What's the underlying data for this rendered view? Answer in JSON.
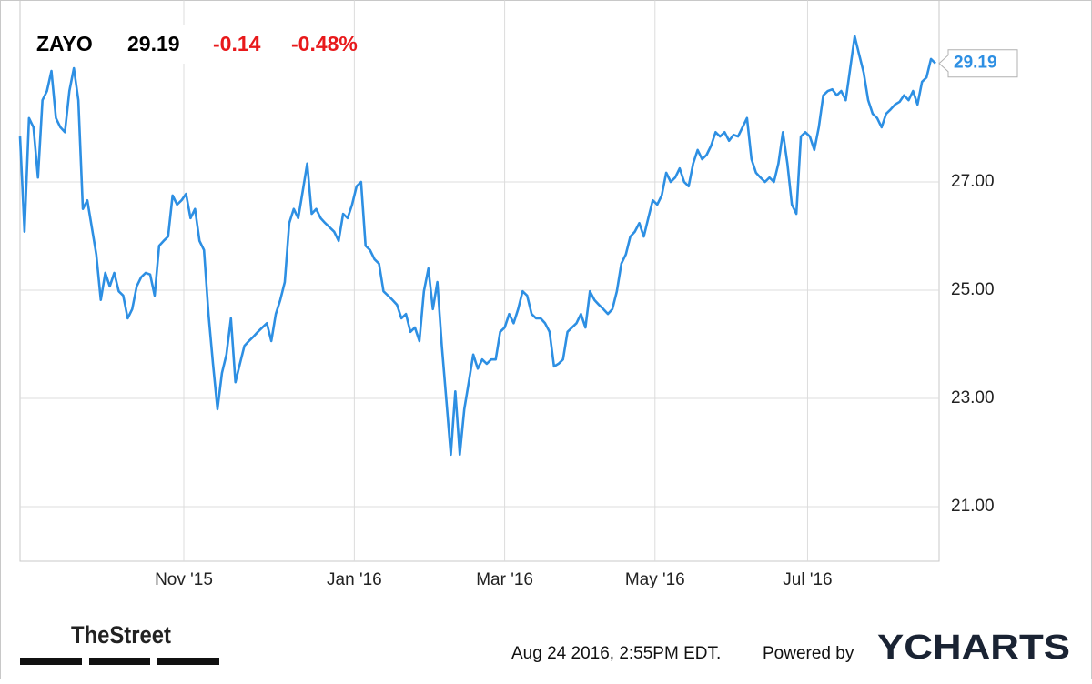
{
  "chart_data": {
    "type": "line",
    "price": 29.19,
    "change": -0.14,
    "change_pct": "-0.48%",
    "series": [
      {
        "name": "ZAYO",
        "color": "#2d8fe3",
        "values": [
          27.84,
          26.08,
          28.18,
          28.01,
          27.08,
          28.51,
          28.68,
          29.05,
          28.18,
          28.01,
          27.92,
          28.68,
          29.1,
          28.51,
          26.5,
          26.66,
          26.16,
          25.66,
          24.82,
          25.32,
          25.07,
          25.32,
          24.98,
          24.9,
          24.48,
          24.65,
          25.07,
          25.24,
          25.32,
          25.29,
          24.9,
          25.82,
          25.91,
          25.99,
          26.75,
          26.58,
          26.66,
          26.78,
          26.33,
          26.5,
          25.91,
          25.74,
          24.56,
          23.64,
          22.8,
          23.47,
          23.81,
          24.48,
          23.3,
          23.64,
          23.97,
          24.06,
          24.14,
          24.23,
          24.31,
          24.39,
          24.06,
          24.56,
          24.82,
          25.15,
          26.24,
          26.5,
          26.33,
          26.83,
          27.34,
          26.41,
          26.5,
          26.33,
          26.24,
          26.16,
          26.08,
          25.91,
          26.41,
          26.33,
          26.58,
          26.92,
          27.0,
          25.82,
          25.74,
          25.57,
          25.49,
          24.98,
          24.9,
          24.82,
          24.73,
          24.48,
          24.56,
          24.23,
          24.31,
          24.06,
          24.98,
          25.4,
          24.65,
          25.15,
          23.97,
          22.97,
          21.96,
          23.13,
          21.96,
          22.8,
          23.3,
          23.81,
          23.55,
          23.72,
          23.64,
          23.72,
          23.72,
          24.23,
          24.31,
          24.56,
          24.39,
          24.65,
          24.98,
          24.9,
          24.56,
          24.48,
          24.48,
          24.39,
          24.23,
          23.59,
          23.64,
          23.72,
          24.23,
          24.31,
          24.39,
          24.56,
          24.31,
          24.98,
          24.82,
          24.73,
          24.65,
          24.56,
          24.65,
          24.98,
          25.49,
          25.66,
          25.99,
          26.08,
          26.24,
          25.99,
          26.33,
          26.66,
          26.58,
          26.75,
          27.17,
          27.0,
          27.08,
          27.25,
          27.0,
          26.92,
          27.34,
          27.59,
          27.42,
          27.5,
          27.67,
          27.92,
          27.84,
          27.92,
          27.76,
          27.87,
          27.84,
          28.01,
          28.18,
          27.42,
          27.17,
          27.08,
          27.0,
          27.08,
          27.0,
          27.34,
          27.92,
          27.34,
          26.58,
          26.41,
          27.84,
          27.92,
          27.84,
          27.59,
          28.01,
          28.6,
          28.68,
          28.71,
          28.6,
          28.68,
          28.51,
          29.1,
          29.69,
          29.35,
          29.02,
          28.51,
          28.26,
          28.18,
          28.01,
          28.26,
          28.34,
          28.43,
          28.48,
          28.6,
          28.51,
          28.68,
          28.43,
          28.85,
          28.93,
          29.27,
          29.19
        ]
      }
    ],
    "xlim": [
      0,
      204
    ],
    "xticks": [
      {
        "value": 36.5,
        "label": "Nov '15"
      },
      {
        "value": 74.5,
        "label": "Jan '16"
      },
      {
        "value": 108,
        "label": "Mar '16"
      },
      {
        "value": 141.5,
        "label": "May '16"
      },
      {
        "value": 175.5,
        "label": "Jul '16"
      }
    ],
    "ylim": [
      20,
      30
    ],
    "yticks": [
      {
        "value": 21,
        "label": "21.00"
      },
      {
        "value": 23,
        "label": "23.00"
      },
      {
        "value": 25,
        "label": "25.00"
      },
      {
        "value": 27,
        "label": "27.00"
      }
    ],
    "grid": true
  },
  "footer": {
    "source_logo": "TheStreet",
    "timestamp": "Aug 24 2016, 2:55PM EDT.",
    "powered_by": "Powered by",
    "brand": "YCHARTS"
  }
}
